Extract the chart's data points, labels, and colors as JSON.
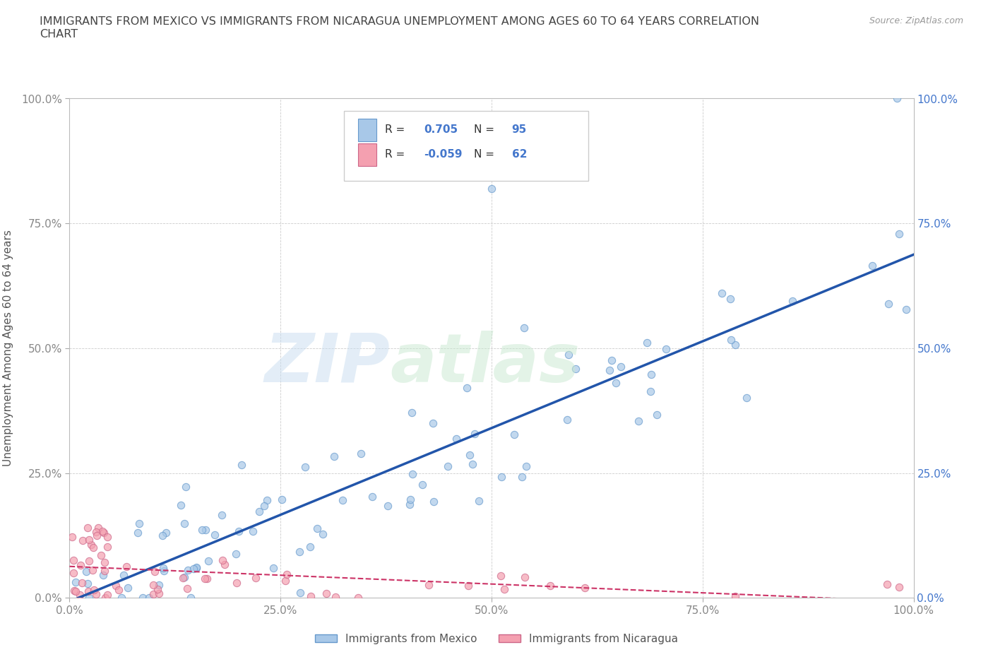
{
  "title": "IMMIGRANTS FROM MEXICO VS IMMIGRANTS FROM NICARAGUA UNEMPLOYMENT AMONG AGES 60 TO 64 YEARS CORRELATION\nCHART",
  "source": "Source: ZipAtlas.com",
  "ylabel": "Unemployment Among Ages 60 to 64 years",
  "xlim": [
    0,
    1.0
  ],
  "ylim": [
    0,
    1.0
  ],
  "x_tick_labels": [
    "0.0%",
    "25.0%",
    "50.0%",
    "75.0%",
    "100.0%"
  ],
  "x_tick_vals": [
    0.0,
    0.25,
    0.5,
    0.75,
    1.0
  ],
  "y_tick_labels": [
    "0.0%",
    "25.0%",
    "50.0%",
    "75.0%",
    "100.0%"
  ],
  "y_tick_vals": [
    0.0,
    0.25,
    0.5,
    0.75,
    1.0
  ],
  "right_y_tick_labels": [
    "0.0%",
    "25.0%",
    "50.0%",
    "75.0%",
    "100.0%"
  ],
  "right_y_tick_vals": [
    0.0,
    0.25,
    0.5,
    0.75,
    1.0
  ],
  "mexico_color": "#a8c8e8",
  "mexico_edge_color": "#6699cc",
  "nicaragua_color": "#f4a0b0",
  "nicaragua_edge_color": "#cc6688",
  "mexico_line_color": "#2255aa",
  "nicaragua_line_color": "#cc3366",
  "mexico_R": 0.705,
  "mexico_N": 95,
  "nicaragua_R": -0.059,
  "nicaragua_N": 62,
  "watermark_zip": "ZIP",
  "watermark_atlas": "atlas",
  "background_color": "#ffffff",
  "grid_color": "#cccccc",
  "title_color": "#444444",
  "axis_label_color": "#555555",
  "tick_color": "#888888",
  "right_tick_color": "#4477cc",
  "legend_label_mexico": "Immigrants from Mexico",
  "legend_label_nicaragua": "Immigrants from Nicaragua"
}
